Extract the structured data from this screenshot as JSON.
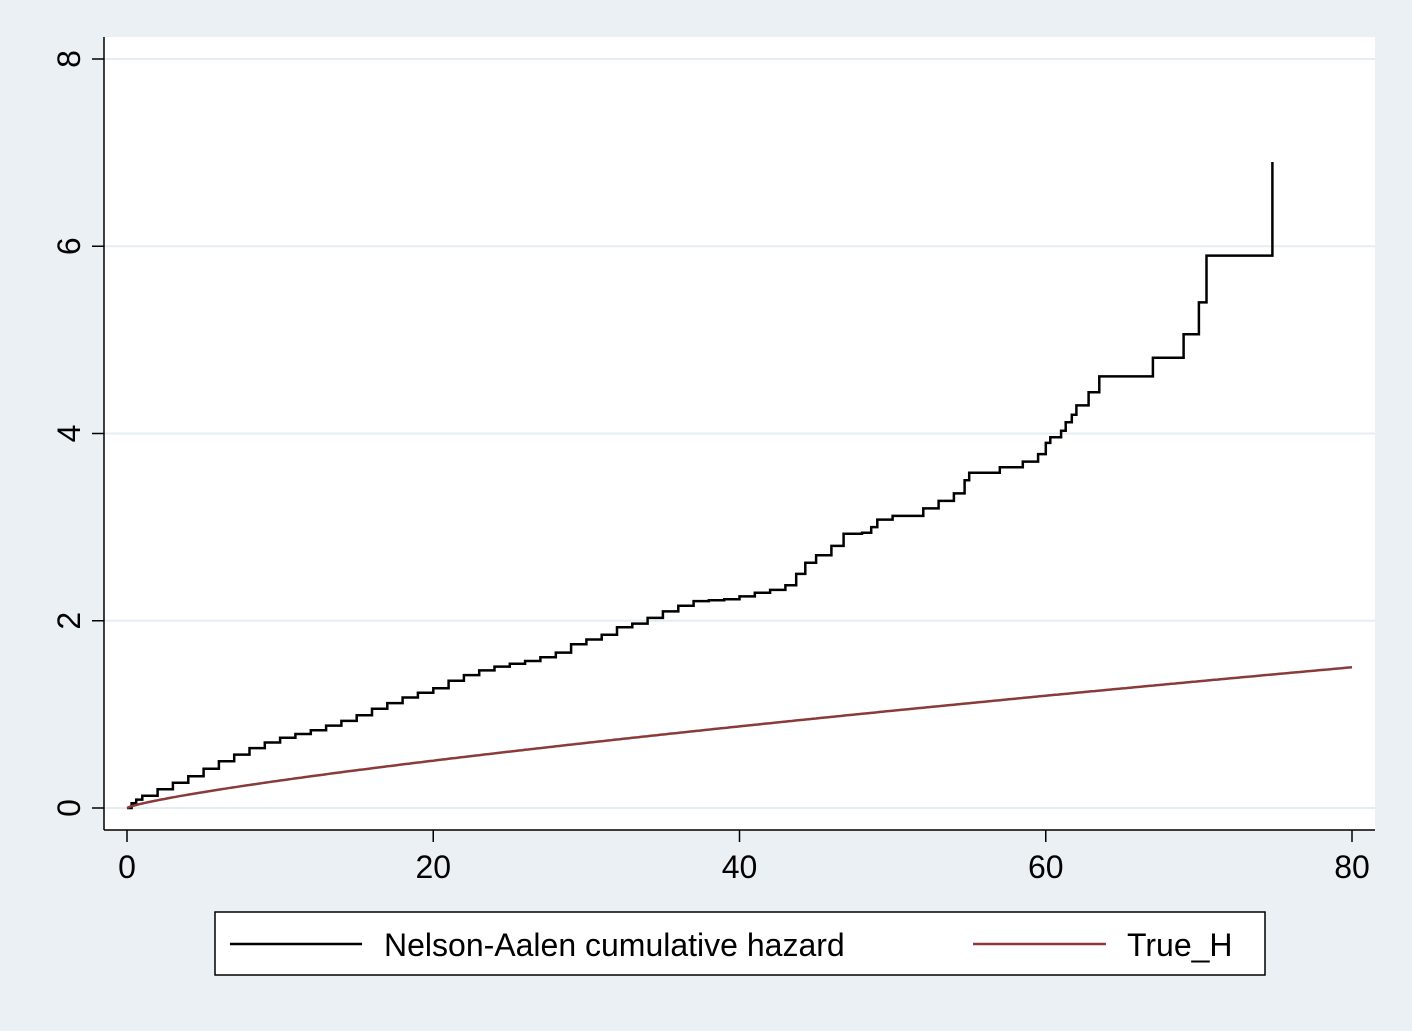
{
  "chart_data": {
    "type": "line",
    "title": "",
    "xlabel": "",
    "ylabel": "",
    "xlim": [
      0,
      80
    ],
    "ylim": [
      0,
      8
    ],
    "x_ticks": [
      0,
      20,
      40,
      60,
      80
    ],
    "y_ticks": [
      0,
      2,
      4,
      6,
      8
    ],
    "x_tick_labels": [
      "0",
      "20",
      "40",
      "60",
      "80"
    ],
    "y_tick_labels": [
      "0",
      "2",
      "4",
      "6",
      "8"
    ],
    "grid": "horizontal",
    "legend_position": "bottom",
    "series": [
      {
        "name": "Nelson-Aalen cumulative hazard",
        "color": "#000000",
        "step": true,
        "points": [
          [
            0,
            0
          ],
          [
            0.3,
            0.05
          ],
          [
            0.6,
            0.09
          ],
          [
            1,
            0.13
          ],
          [
            2,
            0.2
          ],
          [
            3,
            0.27
          ],
          [
            4,
            0.34
          ],
          [
            5,
            0.42
          ],
          [
            6,
            0.5
          ],
          [
            7,
            0.57
          ],
          [
            8,
            0.64
          ],
          [
            9,
            0.7
          ],
          [
            10,
            0.75
          ],
          [
            11,
            0.79
          ],
          [
            12,
            0.83
          ],
          [
            13,
            0.88
          ],
          [
            14,
            0.93
          ],
          [
            15,
            0.99
          ],
          [
            16,
            1.06
          ],
          [
            17,
            1.12
          ],
          [
            18,
            1.18
          ],
          [
            19,
            1.23
          ],
          [
            20,
            1.28
          ],
          [
            21,
            1.36
          ],
          [
            22,
            1.42
          ],
          [
            23,
            1.47
          ],
          [
            24,
            1.51
          ],
          [
            25,
            1.54
          ],
          [
            26,
            1.57
          ],
          [
            27,
            1.61
          ],
          [
            28,
            1.66
          ],
          [
            29,
            1.75
          ],
          [
            30,
            1.8
          ],
          [
            31,
            1.85
          ],
          [
            32,
            1.93
          ],
          [
            33,
            1.97
          ],
          [
            34,
            2.03
          ],
          [
            35,
            2.1
          ],
          [
            36,
            2.16
          ],
          [
            37,
            2.21
          ],
          [
            38,
            2.22
          ],
          [
            39,
            2.23
          ],
          [
            40,
            2.26
          ],
          [
            41,
            2.3
          ],
          [
            42,
            2.33
          ],
          [
            43,
            2.38
          ],
          [
            43.7,
            2.5
          ],
          [
            44.3,
            2.62
          ],
          [
            45,
            2.7
          ],
          [
            46,
            2.8
          ],
          [
            46.8,
            2.93
          ],
          [
            48,
            2.94
          ],
          [
            48.6,
            3.0
          ],
          [
            49,
            3.08
          ],
          [
            50,
            3.12
          ],
          [
            51,
            3.12
          ],
          [
            52,
            3.2
          ],
          [
            53,
            3.28
          ],
          [
            54,
            3.36
          ],
          [
            54.7,
            3.5
          ],
          [
            55,
            3.58
          ],
          [
            57,
            3.64
          ],
          [
            58.5,
            3.7
          ],
          [
            59.5,
            3.78
          ],
          [
            60,
            3.9
          ],
          [
            60.3,
            3.96
          ],
          [
            61,
            4.03
          ],
          [
            61.3,
            4.12
          ],
          [
            61.7,
            4.2
          ],
          [
            62,
            4.3
          ],
          [
            62.8,
            4.44
          ],
          [
            63.5,
            4.61
          ],
          [
            67,
            4.81
          ],
          [
            69,
            5.06
          ],
          [
            70,
            5.4
          ],
          [
            70.5,
            5.9
          ],
          [
            74.8,
            6.9
          ]
        ]
      },
      {
        "name": "True_H",
        "color": "#8b3a3a",
        "curve": "power",
        "scale": 0.048,
        "exponent": 0.786,
        "x_range": [
          0,
          80
        ]
      }
    ]
  }
}
